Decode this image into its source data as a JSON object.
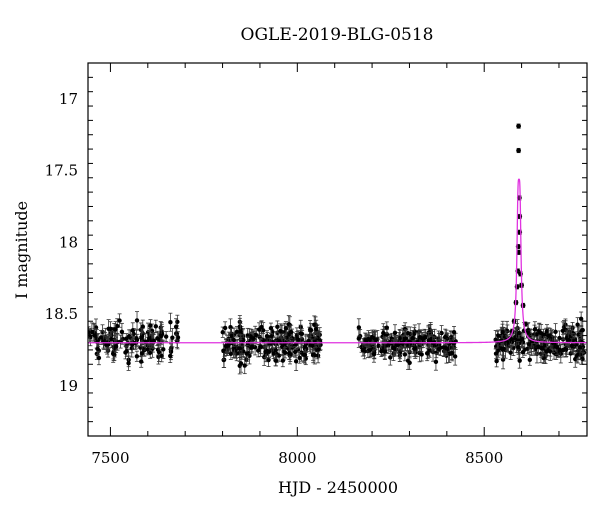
{
  "chart_data": {
    "type": "scatter",
    "title": "OGLE-2019-BLG-0518",
    "xlabel": "HJD - 2450000",
    "ylabel": "I magnitude",
    "xlim": [
      7440,
      8775
    ],
    "ylim": [
      19.35,
      16.75
    ],
    "y_inverted": true,
    "x_ticks": [
      7500,
      8000,
      8500
    ],
    "y_ticks": [
      17,
      17.5,
      18,
      18.5,
      19
    ],
    "grid": false,
    "legend": "none",
    "baseline_mag": 18.7,
    "series": [
      {
        "kind": "points_with_errorbars",
        "color": "#000000",
        "seasons": [
          {
            "start": 7440,
            "end": 7685,
            "mean_mag": 18.69,
            "scatter": 0.06,
            "error": 0.05,
            "count": 130
          },
          {
            "start": 7800,
            "end": 8065,
            "mean_mag": 18.7,
            "scatter": 0.06,
            "error": 0.05,
            "count": 210
          },
          {
            "start": 8160,
            "end": 8425,
            "mean_mag": 18.7,
            "scatter": 0.05,
            "error": 0.05,
            "count": 190
          },
          {
            "start": 8530,
            "end": 8770,
            "mean_mag": 18.7,
            "scatter": 0.06,
            "error": 0.05,
            "count": 200
          }
        ],
        "event_points": [
          {
            "x": 8592,
            "y": 17.19
          },
          {
            "x": 8592,
            "y": 17.36
          },
          {
            "x": 8594,
            "y": 17.69
          },
          {
            "x": 8595,
            "y": 17.82
          },
          {
            "x": 8595,
            "y": 17.93
          },
          {
            "x": 8591,
            "y": 18.03
          },
          {
            "x": 8593,
            "y": 18.07
          },
          {
            "x": 8590,
            "y": 18.2
          },
          {
            "x": 8597,
            "y": 18.22
          },
          {
            "x": 8588,
            "y": 18.31
          },
          {
            "x": 8600,
            "y": 18.3
          },
          {
            "x": 8585,
            "y": 18.42
          },
          {
            "x": 8604,
            "y": 18.44
          },
          {
            "x": 8580,
            "y": 18.55
          },
          {
            "x": 8610,
            "y": 18.57
          },
          {
            "x": 8575,
            "y": 18.62
          },
          {
            "x": 8616,
            "y": 18.63
          }
        ]
      },
      {
        "kind": "model_line",
        "color": "#e033e0",
        "peak_x": 8593,
        "peak_mag": 17.56,
        "baseline_mag": 18.7
      }
    ]
  }
}
